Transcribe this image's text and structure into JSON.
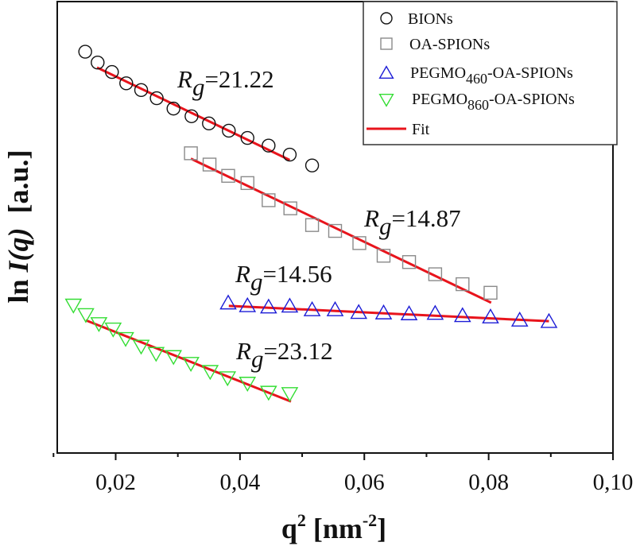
{
  "chart_data": {
    "type": "scatter",
    "title": "",
    "xlabel": {
      "base": "q",
      "sup": "2",
      "mid": " [nm",
      "sup2": "-2",
      "end": "]"
    },
    "ylabel": {
      "pre": "ln ",
      "italic": "I(q)",
      "post": "  [a.u.]"
    },
    "xlim": [
      0.0106,
      0.1
    ],
    "ylim": [
      0,
      100
    ],
    "y_tick_labels_shown": false,
    "x_ticks": [
      0.02,
      0.04,
      0.06,
      0.08,
      0.1
    ],
    "x_tick_labels": [
      "0,02",
      "0,04",
      "0,06",
      "0,08",
      "0,10"
    ],
    "grid": false,
    "legend_position": "top-right",
    "series": [
      {
        "name": "BIONs",
        "legend": {
          "main": "BIONs",
          "sub": "",
          "tail": ""
        },
        "marker": "circle",
        "color": "#111111",
        "x": [
          0.0151,
          0.0171,
          0.0194,
          0.0217,
          0.0241,
          0.0266,
          0.0293,
          0.0322,
          0.035,
          0.0382,
          0.0412,
          0.0446,
          0.048,
          0.0516
        ],
        "y": [
          88.9,
          86.5,
          84.4,
          81.9,
          80.4,
          78.6,
          76.3,
          74.6,
          73.0,
          71.4,
          69.8,
          68.1,
          66.1,
          63.7
        ],
        "fit": {
          "x": [
            0.017,
            0.048
          ],
          "y": [
            85.4,
            64.9
          ]
        }
      },
      {
        "name": "OA-SPIONs",
        "legend": {
          "main": "OA-SPIONs",
          "sub": "",
          "tail": ""
        },
        "marker": "square",
        "color": "#8a8a8a",
        "x": [
          0.0321,
          0.0351,
          0.0381,
          0.0412,
          0.0446,
          0.0481,
          0.0516,
          0.0553,
          0.0592,
          0.0631,
          0.0672,
          0.0714,
          0.0758,
          0.0803
        ],
        "y": [
          66.4,
          63.9,
          61.4,
          59.8,
          56.0,
          54.2,
          50.5,
          49.2,
          46.5,
          43.7,
          42.3,
          39.6,
          37.4,
          35.5
        ],
        "fit": {
          "x": [
            0.0321,
            0.0804
          ],
          "y": [
            65.2,
            33.3
          ]
        }
      },
      {
        "name": "PEGMO460-OA-SPIONs",
        "legend": {
          "main": "PEGMO",
          "sub": "460",
          "tail": "-OA-SPIONs"
        },
        "marker": "triangle-up",
        "color": "#1c1cd6",
        "x": [
          0.0381,
          0.0412,
          0.0446,
          0.048,
          0.0516,
          0.0553,
          0.0591,
          0.0631,
          0.0672,
          0.0714,
          0.0758,
          0.0803,
          0.085,
          0.0897
        ],
        "y": [
          33.2,
          32.6,
          32.3,
          32.5,
          31.7,
          31.7,
          31.1,
          31.0,
          30.8,
          30.9,
          30.4,
          30.1,
          29.4,
          29.1
        ],
        "fit": {
          "x": [
            0.0382,
            0.0897
          ],
          "y": [
            32.6,
            29.2
          ]
        }
      },
      {
        "name": "PEGMO860-OA-SPIONs",
        "legend": {
          "main": "PEGMO",
          "sub": "860",
          "tail": "-OA-SPIONs"
        },
        "marker": "triangle-down",
        "color": "#33dd33",
        "x": [
          0.0132,
          0.0152,
          0.0173,
          0.0196,
          0.0216,
          0.0241,
          0.0265,
          0.0293,
          0.0321,
          0.0352,
          0.038,
          0.0412,
          0.0446,
          0.048
        ],
        "y": [
          32.8,
          30.7,
          28.7,
          27.5,
          25.4,
          23.7,
          22.1,
          21.4,
          19.9,
          18.1,
          16.7,
          15.5,
          13.5,
          13.2
        ],
        "fit": {
          "x": [
            0.0152,
            0.0482
          ],
          "y": [
            29.4,
            11.4
          ]
        }
      }
    ],
    "fit_legend": {
      "label": "Fit",
      "color": "#e8141c"
    },
    "annotations": [
      {
        "symbol": "R",
        "sub": "g",
        "value": "=21.22"
      },
      {
        "symbol": "R",
        "sub": "g",
        "value": "=14.87"
      },
      {
        "symbol": "R",
        "sub": "g",
        "value": "=14.56"
      },
      {
        "symbol": "R",
        "sub": "g",
        "value": "=23.12"
      }
    ]
  }
}
